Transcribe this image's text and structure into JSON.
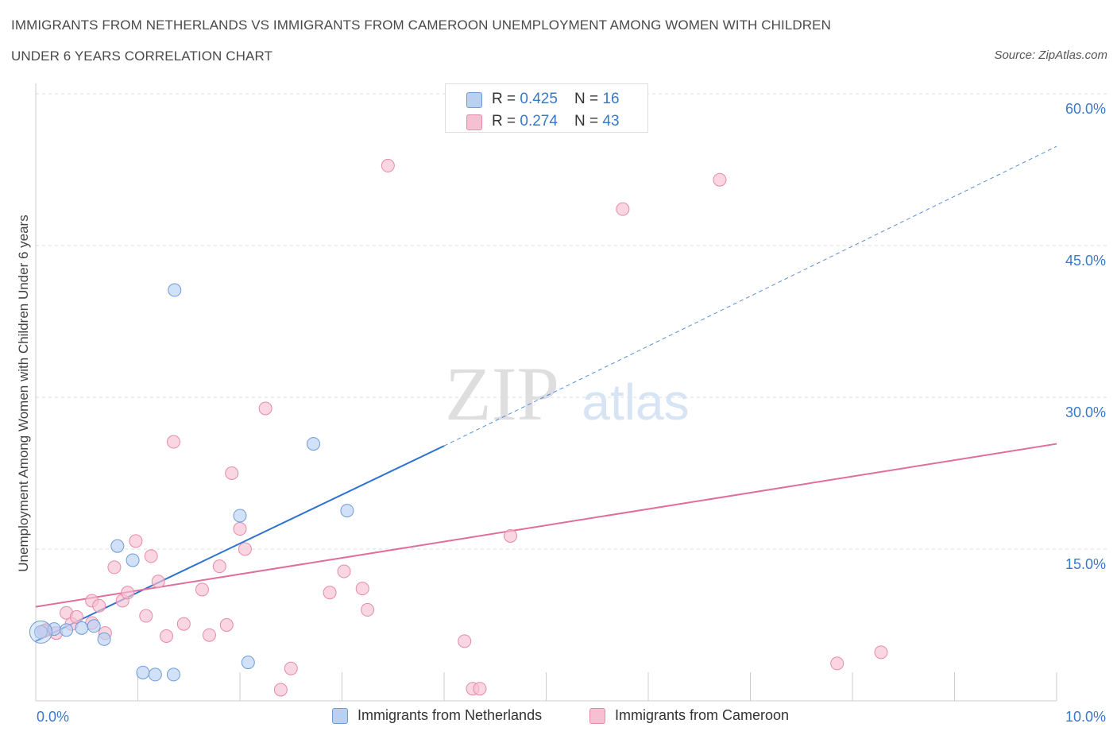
{
  "title_line1": "IMMIGRANTS FROM NETHERLANDS VS IMMIGRANTS FROM CAMEROON UNEMPLOYMENT AMONG WOMEN WITH CHILDREN",
  "title_line2": "UNDER 6 YEARS CORRELATION CHART",
  "source": "Source: ZipAtlas.com",
  "watermark": {
    "zip": "ZIP",
    "atlas": "atlas"
  },
  "stats": [
    {
      "r_label": "R = ",
      "r": "0.425",
      "n_label": "N = ",
      "n": "16"
    },
    {
      "r_label": "R = ",
      "r": "0.274",
      "n_label": "N = ",
      "n": "43"
    }
  ],
  "colors": {
    "netherlands_fill": "#b8d1f3",
    "netherlands_stroke": "#6e9bd8",
    "netherlands_line": "#2d72d2",
    "cameroon_fill": "#f7c0d2",
    "cameroon_stroke": "#e68aa8",
    "cameroon_line": "#e06d9a",
    "grid": "#dddddd",
    "axis_text": "#3a78c9"
  },
  "chart_data": {
    "type": "scatter",
    "title": "IMMIGRANTS FROM NETHERLANDS VS IMMIGRANTS FROM CAMEROON UNEMPLOYMENT AMONG WOMEN WITH CHILDREN UNDER 6 YEARS CORRELATION CHART",
    "xlabel": "",
    "ylabel": "Unemployment Among Women with Children Under 6 years",
    "xlim": [
      0,
      10
    ],
    "ylim": [
      0,
      60
    ],
    "x_tick_labels": [
      "0.0%",
      "10.0%"
    ],
    "y_ticks": [
      15,
      30,
      45,
      60
    ],
    "y_tick_labels": [
      "15.0%",
      "30.0%",
      "45.0%",
      "60.0%"
    ],
    "grid": true,
    "legend": "bottom",
    "series": [
      {
        "name": "Immigrants from Netherlands",
        "points": [
          [
            0.05,
            6.8
          ],
          [
            0.18,
            7.1
          ],
          [
            0.3,
            7.0
          ],
          [
            0.45,
            7.2
          ],
          [
            0.57,
            7.4
          ],
          [
            0.67,
            6.1
          ],
          [
            0.8,
            15.3
          ],
          [
            0.95,
            13.9
          ],
          [
            1.05,
            2.8
          ],
          [
            1.17,
            2.6
          ],
          [
            1.35,
            2.6
          ],
          [
            1.36,
            40.6
          ],
          [
            2.0,
            18.3
          ],
          [
            2.08,
            3.8
          ],
          [
            2.72,
            25.4
          ],
          [
            3.05,
            18.8
          ]
        ],
        "trend": {
          "x0": 0,
          "y0": 5.9,
          "x1": 4.0,
          "y1": 25.2,
          "dash_to_x": 10,
          "dash_to_y": 54.8
        }
      },
      {
        "name": "Immigrants from Cameroon",
        "points": [
          [
            0.1,
            7.0
          ],
          [
            0.2,
            6.7
          ],
          [
            0.3,
            8.7
          ],
          [
            0.35,
            7.6
          ],
          [
            0.4,
            8.3
          ],
          [
            0.55,
            7.7
          ],
          [
            0.55,
            9.9
          ],
          [
            0.62,
            9.4
          ],
          [
            0.68,
            6.7
          ],
          [
            0.77,
            13.2
          ],
          [
            0.85,
            9.9
          ],
          [
            0.9,
            10.7
          ],
          [
            0.98,
            15.8
          ],
          [
            1.08,
            8.4
          ],
          [
            1.13,
            14.3
          ],
          [
            1.2,
            11.8
          ],
          [
            1.28,
            6.4
          ],
          [
            1.35,
            25.6
          ],
          [
            1.45,
            7.6
          ],
          [
            1.63,
            11.0
          ],
          [
            1.7,
            6.5
          ],
          [
            1.8,
            13.3
          ],
          [
            1.87,
            7.5
          ],
          [
            1.92,
            22.5
          ],
          [
            2.0,
            17.0
          ],
          [
            2.05,
            15.0
          ],
          [
            2.25,
            28.9
          ],
          [
            2.4,
            1.1
          ],
          [
            2.5,
            3.2
          ],
          [
            2.88,
            10.7
          ],
          [
            3.02,
            12.8
          ],
          [
            3.2,
            11.1
          ],
          [
            3.25,
            9.0
          ],
          [
            3.45,
            52.9
          ],
          [
            4.2,
            5.9
          ],
          [
            4.28,
            1.2
          ],
          [
            4.35,
            1.2
          ],
          [
            4.65,
            16.3
          ],
          [
            5.75,
            48.6
          ],
          [
            6.7,
            51.5
          ],
          [
            7.85,
            3.7
          ],
          [
            8.28,
            4.8
          ],
          [
            0.08,
            6.9
          ]
        ],
        "trend": {
          "x0": 0,
          "y0": 9.3,
          "x1": 10,
          "y1": 25.4
        }
      }
    ]
  }
}
